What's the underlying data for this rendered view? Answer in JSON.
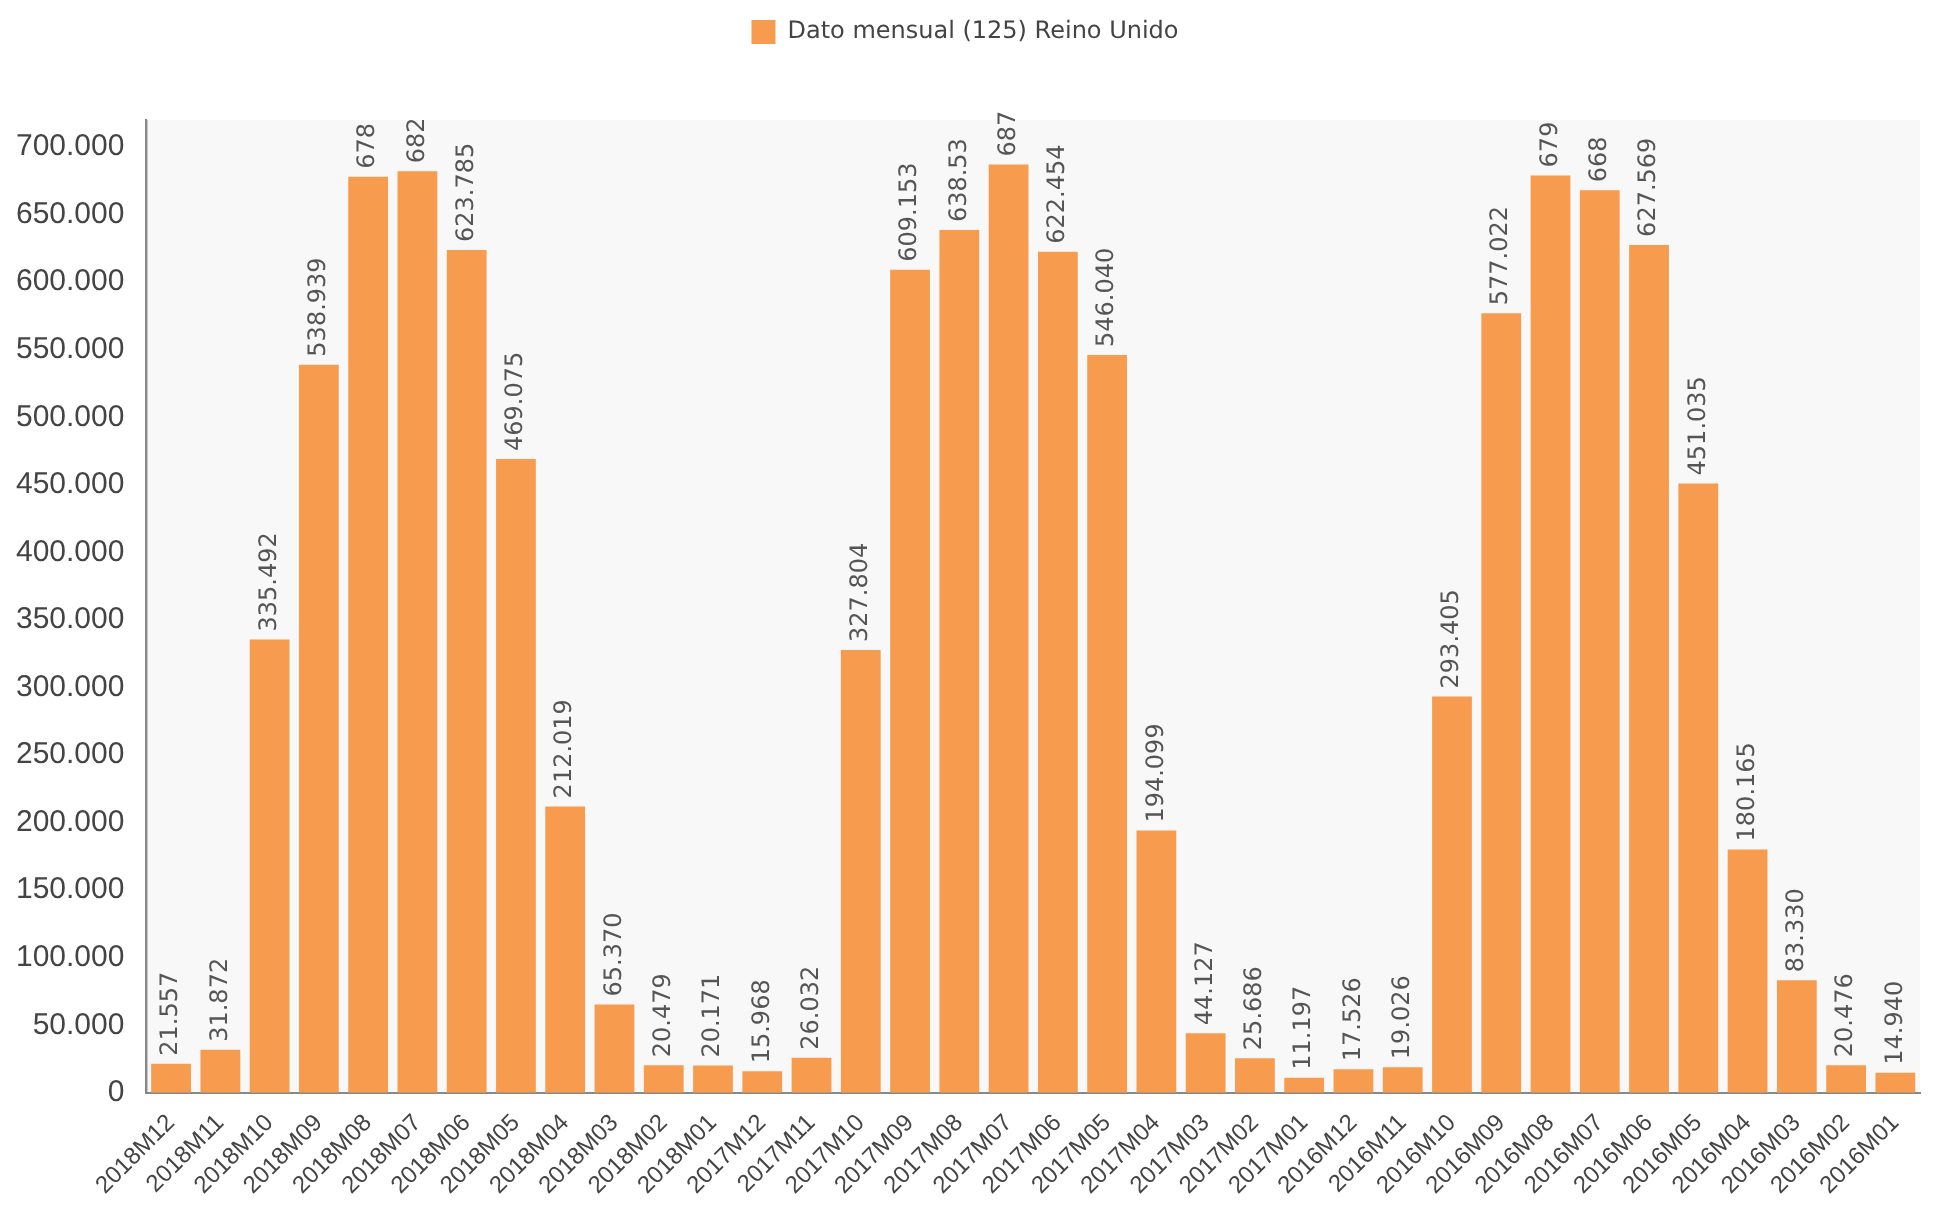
{
  "chart_data": {
    "type": "bar",
    "categories": [
      "2018M12",
      "2018M11",
      "2018M10",
      "2018M09",
      "2018M08",
      "2018M07",
      "2018M06",
      "2018M05",
      "2018M04",
      "2018M03",
      "2018M02",
      "2018M01",
      "2017M12",
      "2017M11",
      "2017M10",
      "2017M09",
      "2017M08",
      "2017M07",
      "2017M06",
      "2017M05",
      "2017M04",
      "2017M03",
      "2017M02",
      "2017M01",
      "2016M12",
      "2016M11",
      "2016M10",
      "2016M09",
      "2016M08",
      "2016M07",
      "2016M06",
      "2016M05",
      "2016M04",
      "2016M03",
      "2016M02",
      "2016M01"
    ],
    "series": [
      {
        "name": "Dato mensual (125) Reino Unido",
        "color": "#f79b4f",
        "values": [
          21.557,
          31.872,
          335.492,
          538.939,
          678,
          682,
          623.785,
          469.075,
          212.019,
          65.37,
          20.479,
          20.171,
          15.968,
          26.032,
          327.804,
          609.153,
          638.53,
          687,
          622.454,
          546.04,
          194.099,
          44.127,
          25.686,
          11.197,
          17.526,
          19.026,
          293.405,
          577.022,
          679,
          668,
          627.569,
          451.035,
          180.165,
          83.33,
          20.476,
          14.94
        ],
        "value_labels": [
          "21.557",
          "31.872",
          "335.492",
          "538.939",
          "678",
          "682",
          "623.785",
          "469.075",
          "212.019",
          "65.370",
          "20.479",
          "20.171",
          "15.968",
          "26.032",
          "327.804",
          "609.153",
          "638.53",
          "687",
          "622.454",
          "546.040",
          "194.099",
          "44.127",
          "25.686",
          "11.197",
          "17.526",
          "19.026",
          "293.405",
          "577.022",
          "679",
          "668",
          "627.569",
          "451.035",
          "180.165",
          "83.330",
          "20.476",
          "14.940"
        ]
      }
    ],
    "ylim": [
      0,
      720
    ],
    "yticks": [
      0,
      {
        "value": 50,
        "label": "50.000"
      },
      {
        "value": 100,
        "label": "100.000"
      },
      {
        "value": 150,
        "label": "150.000"
      },
      {
        "value": 200,
        "label": "200.000"
      },
      {
        "value": 250,
        "label": "250.000"
      },
      {
        "value": 300,
        "label": "300.000"
      },
      {
        "value": 350,
        "label": "350.000"
      },
      {
        "value": 400,
        "label": "400.000"
      },
      {
        "value": 450,
        "label": "450.000"
      },
      {
        "value": 500,
        "label": "500.000"
      },
      {
        "value": 550,
        "label": "550.000"
      },
      {
        "value": 600,
        "label": "600.000"
      },
      {
        "value": 650,
        "label": "650.000"
      },
      {
        "value": 700,
        "label": "700.000"
      }
    ],
    "grid": false,
    "legend": "top"
  }
}
